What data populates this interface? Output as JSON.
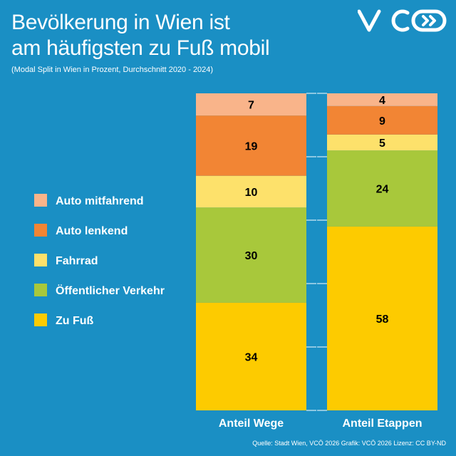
{
  "header": {
    "title_line1": "Bevölkerung in Wien ist",
    "title_line2": "am häufigsten zu Fuß mobil",
    "subtitle": "(Modal Split in Wien in Prozent, Durchschnitt 2020 - 2024)"
  },
  "logo": {
    "text": "VCÖ",
    "icon": "vco-logo-icon"
  },
  "footer": {
    "source": "Quelle: Stadt Wien, VCÖ 2026 Grafik: VCÖ 2026 Lizenz: CC BY-ND"
  },
  "colors": {
    "background": "#1a8fc4",
    "auto_mitfahrend": "#f9b48a",
    "auto_lenkend": "#f28534",
    "fahrrad": "#fde16b",
    "oeffentlicher_verkehr": "#a8c83b",
    "zu_fuss": "#fdcb00"
  },
  "chart_data": {
    "type": "bar",
    "stacked": true,
    "categories": [
      "Anteil Wege",
      "Anteil Etappen"
    ],
    "series": [
      {
        "name": "Zu Fuß",
        "values": [
          34,
          58
        ],
        "color": "#fdcb00"
      },
      {
        "name": "Öffentlicher Verkehr",
        "values": [
          30,
          24
        ],
        "color": "#a8c83b"
      },
      {
        "name": "Fahrrad",
        "values": [
          10,
          5
        ],
        "color": "#fde16b"
      },
      {
        "name": "Auto lenkend",
        "values": [
          19,
          9
        ],
        "color": "#f28534"
      },
      {
        "name": "Auto mitfahrend",
        "values": [
          7,
          4
        ],
        "color": "#f9b48a"
      }
    ],
    "legend_order": [
      "Auto mitfahrend",
      "Auto lenkend",
      "Fahrrad",
      "Öffentlicher Verkehr",
      "Zu Fuß"
    ],
    "legend_position": "left",
    "ylim": [
      0,
      100
    ],
    "grid": true
  }
}
